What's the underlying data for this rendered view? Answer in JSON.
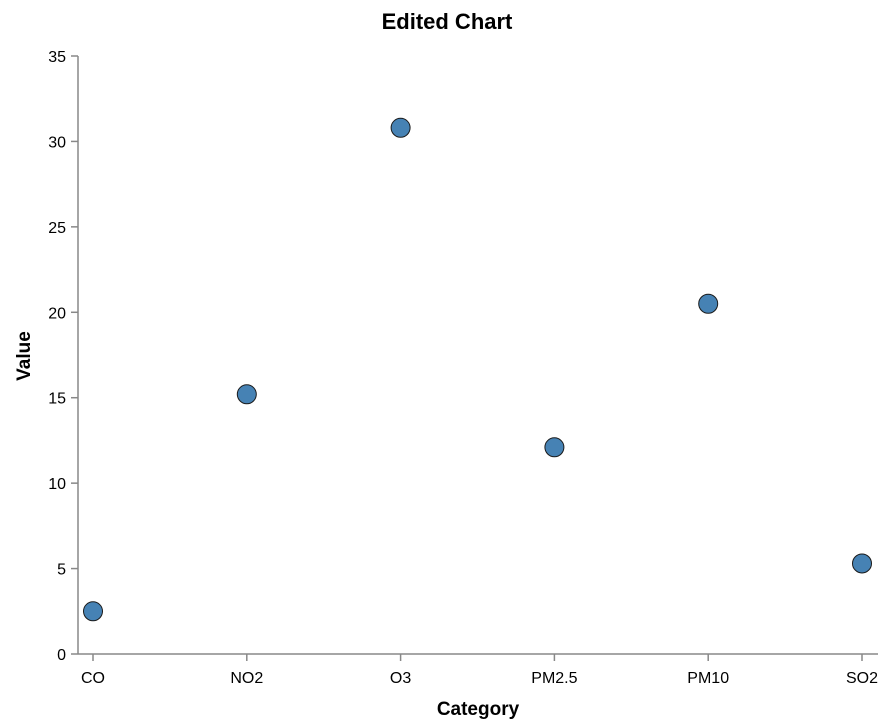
{
  "chart_data": {
    "type": "scatter",
    "title": "Edited Chart",
    "xlabel": "Category",
    "ylabel": "Value",
    "categories": [
      "CO",
      "NO2",
      "O3",
      "PM2.5",
      "PM10",
      "SO2"
    ],
    "values": [
      2.5,
      15.2,
      30.8,
      12.1,
      20.5,
      5.3
    ],
    "ylim": [
      0,
      35
    ],
    "yticks": [
      0,
      5,
      10,
      15,
      20,
      25,
      30,
      35
    ],
    "grid": false,
    "legend": "none",
    "colors": {
      "point_fill": "#4682b4",
      "point_stroke": "#1a1a1a",
      "axis": "#888888"
    }
  }
}
